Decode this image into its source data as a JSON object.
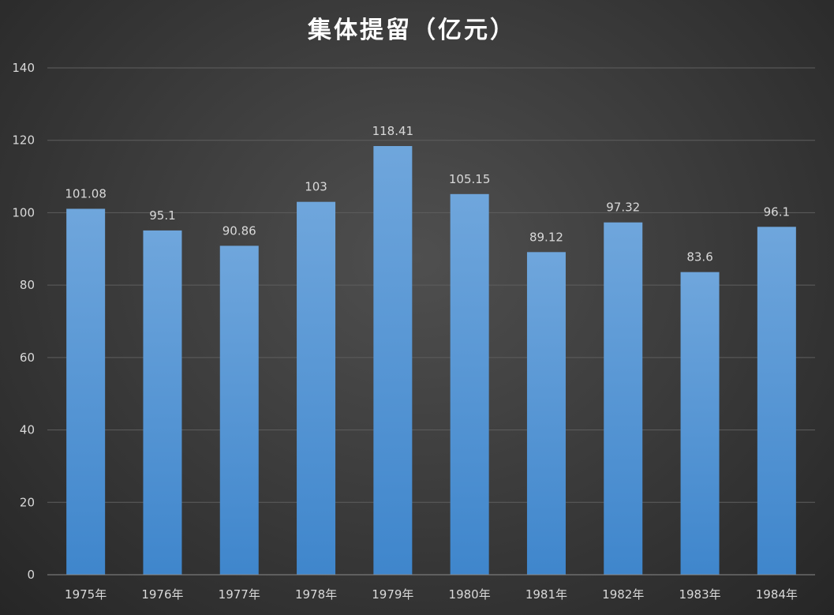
{
  "chart_data": {
    "type": "bar",
    "title": "集体提留（亿元）",
    "xlabel": "",
    "ylabel": "",
    "categories": [
      "1975年",
      "1976年",
      "1977年",
      "1978年",
      "1979年",
      "1980年",
      "1981年",
      "1982年",
      "1983年",
      "1984年"
    ],
    "values": [
      101.08,
      95.1,
      90.86,
      103,
      118.41,
      105.15,
      89.12,
      97.32,
      83.6,
      96.1
    ],
    "value_labels": [
      "101.08",
      "95.1",
      "90.86",
      "103",
      "118.41",
      "105.15",
      "89.12",
      "97.32",
      "83.6",
      "96.1"
    ],
    "ylim": [
      0,
      140
    ],
    "yticks": [
      0,
      20,
      40,
      60,
      80,
      100,
      120,
      140
    ],
    "ytick_labels": [
      "0",
      "20",
      "40",
      "60",
      "80",
      "100",
      "120",
      "140"
    ],
    "grid": true,
    "legend": "none",
    "colors": {
      "bar_top": "#6fa6dc",
      "bar_bottom": "#3f86cc",
      "background": "#3d3d3d"
    }
  }
}
